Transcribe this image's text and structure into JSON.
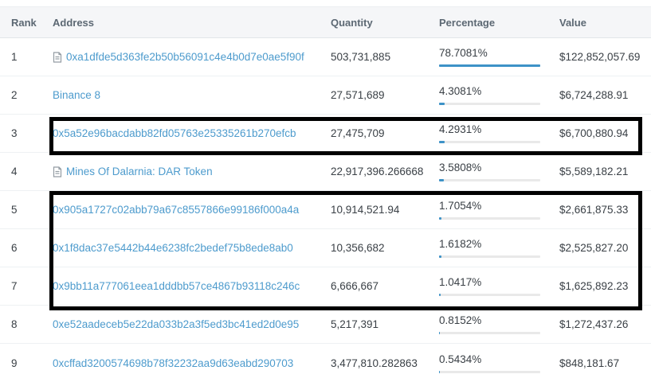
{
  "table": {
    "headers": {
      "rank": "Rank",
      "address": "Address",
      "quantity": "Quantity",
      "percentage": "Percentage",
      "value": "Value"
    },
    "rows": [
      {
        "rank": "1",
        "address": "0xa1dfde5d363fe2b50b56091c4e4b0d7e0ae5f90f",
        "contract_icon": true,
        "quantity": "503,731,885",
        "percentage": "78.7081%",
        "percent": 78.7081,
        "value": "$122,852,057.69",
        "highlighted": false
      },
      {
        "rank": "2",
        "address": "Binance 8",
        "contract_icon": false,
        "quantity": "27,571,689",
        "percentage": "4.3081%",
        "percent": 4.3081,
        "value": "$6,724,288.91",
        "highlighted": false
      },
      {
        "rank": "3",
        "address": "0x5a52e96bacdabb82fd05763e25335261b270efcb",
        "contract_icon": false,
        "quantity": "27,475,709",
        "percentage": "4.2931%",
        "percent": 4.2931,
        "value": "$6,700,880.94",
        "highlighted": true
      },
      {
        "rank": "4",
        "address": "Mines Of Dalarnia: DAR Token",
        "contract_icon": true,
        "quantity": "22,917,396.266668",
        "percentage": "3.5808%",
        "percent": 3.5808,
        "value": "$5,589,182.21",
        "highlighted": false
      },
      {
        "rank": "5",
        "address": "0x905a1727c02abb79a67c8557866e99186f000a4a",
        "contract_icon": false,
        "quantity": "10,914,521.94",
        "percentage": "1.7054%",
        "percent": 1.7054,
        "value": "$2,661,875.33",
        "highlighted": true
      },
      {
        "rank": "6",
        "address": "0x1f8dac37e5442b44e6238fc2bedef75b8ede8ab0",
        "contract_icon": false,
        "quantity": "10,356,682",
        "percentage": "1.6182%",
        "percent": 1.6182,
        "value": "$2,525,827.20",
        "highlighted": true
      },
      {
        "rank": "7",
        "address": "0x9bb11a777061eea1dddbb57ce4867b93118c246c",
        "contract_icon": false,
        "quantity": "6,666,667",
        "percentage": "1.0417%",
        "percent": 1.0417,
        "value": "$1,625,892.23",
        "highlighted": true
      },
      {
        "rank": "8",
        "address": "0xe52aadeceb5e22da033b2a3f5ed3bc41ed2d0e95",
        "contract_icon": false,
        "quantity": "5,217,391",
        "percentage": "0.8152%",
        "percent": 0.8152,
        "value": "$1,272,437.26",
        "highlighted": false
      },
      {
        "rank": "9",
        "address": "0xcffad3200574698b78f32232aa9d63eabd290703",
        "contract_icon": false,
        "quantity": "3,477,810.282863",
        "percentage": "0.5434%",
        "percent": 0.5434,
        "value": "$848,181.67",
        "highlighted": false
      }
    ]
  },
  "annotations": {
    "highlight_boxes": [
      {
        "label": "highlight around row 3"
      },
      {
        "label": "highlight around rows 5 to 7"
      }
    ],
    "box_color": "#000000"
  },
  "colors": {
    "link": "#4d9bcd",
    "bar_fill": "#3d92c7",
    "bar_track": "#e9e9e9",
    "header_bg": "#f5f6f8",
    "header_text": "#5c6873",
    "body_text": "#3a4046"
  }
}
